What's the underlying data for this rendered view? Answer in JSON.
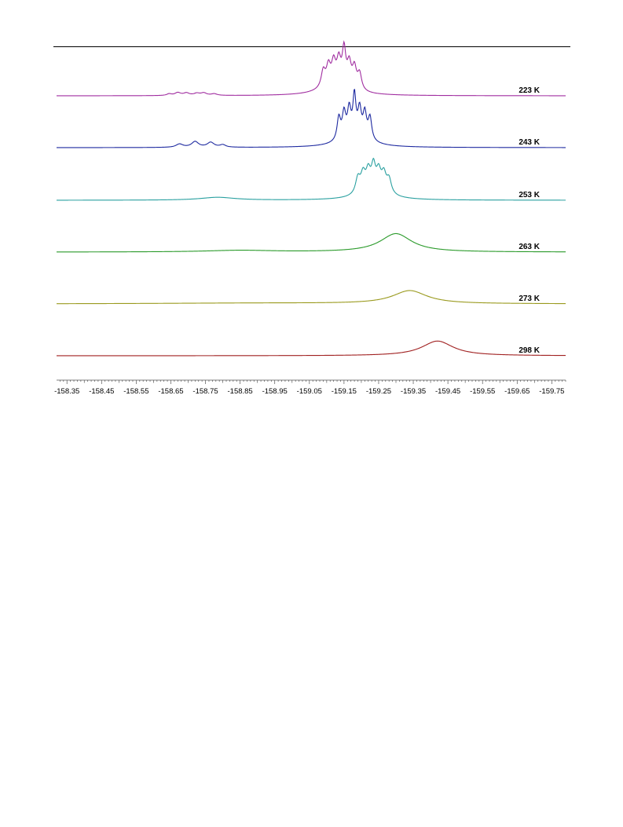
{
  "chart_data": {
    "type": "line",
    "title": "",
    "xlabel": "",
    "ylabel": "",
    "xlim": [
      -158.32,
      -159.79
    ],
    "x_axis_reversed": true,
    "x_ticks": [
      "-158.35",
      "-158.45",
      "-158.55",
      "-158.65",
      "-158.75",
      "-158.85",
      "-158.95",
      "-159.05",
      "-159.15",
      "-159.25",
      "-159.35",
      "-159.45",
      "-159.55",
      "-159.65",
      "-159.75"
    ],
    "grid": false,
    "legend": "none",
    "y_axis": "none",
    "stacked_offset": true,
    "series": [
      {
        "name": "223 K",
        "color": "#a02da0",
        "peaks": [
          {
            "x": -158.645,
            "height": 0.04,
            "width": 0.008
          },
          {
            "x": -158.67,
            "height": 0.07,
            "width": 0.01
          },
          {
            "x": -158.695,
            "height": 0.06,
            "width": 0.01
          },
          {
            "x": -158.725,
            "height": 0.05,
            "width": 0.01
          },
          {
            "x": -158.745,
            "height": 0.06,
            "width": 0.01
          },
          {
            "x": -158.775,
            "height": 0.04,
            "width": 0.01
          },
          {
            "x": -159.09,
            "height": 0.4,
            "width": 0.007
          },
          {
            "x": -159.105,
            "height": 0.45,
            "width": 0.007
          },
          {
            "x": -159.12,
            "height": 0.5,
            "width": 0.007
          },
          {
            "x": -159.135,
            "height": 0.55,
            "width": 0.007
          },
          {
            "x": -159.15,
            "height": 0.85,
            "width": 0.006
          },
          {
            "x": -159.165,
            "height": 0.55,
            "width": 0.007
          },
          {
            "x": -159.18,
            "height": 0.5,
            "width": 0.007
          },
          {
            "x": -159.195,
            "height": 0.4,
            "width": 0.007
          },
          {
            "x": -159.125,
            "height": 0.25,
            "width": 0.05
          }
        ]
      },
      {
        "name": "243 K",
        "color": "#1e2aa0",
        "peaks": [
          {
            "x": -158.675,
            "height": 0.08,
            "width": 0.012
          },
          {
            "x": -158.72,
            "height": 0.14,
            "width": 0.012
          },
          {
            "x": -158.765,
            "height": 0.12,
            "width": 0.012
          },
          {
            "x": -158.8,
            "height": 0.06,
            "width": 0.01
          },
          {
            "x": -159.135,
            "height": 0.55,
            "width": 0.006
          },
          {
            "x": -159.15,
            "height": 0.6,
            "width": 0.006
          },
          {
            "x": -159.165,
            "height": 0.65,
            "width": 0.006
          },
          {
            "x": -159.18,
            "height": 0.95,
            "width": 0.005
          },
          {
            "x": -159.195,
            "height": 0.65,
            "width": 0.006
          },
          {
            "x": -159.21,
            "height": 0.6,
            "width": 0.006
          },
          {
            "x": -159.225,
            "height": 0.55,
            "width": 0.006
          },
          {
            "x": -159.18,
            "height": 0.25,
            "width": 0.05
          }
        ]
      },
      {
        "name": "253 K",
        "color": "#2aa0a0",
        "peaks": [
          {
            "x": -158.785,
            "height": 0.07,
            "width": 0.06
          },
          {
            "x": -159.19,
            "height": 0.38,
            "width": 0.008
          },
          {
            "x": -159.205,
            "height": 0.42,
            "width": 0.008
          },
          {
            "x": -159.22,
            "height": 0.45,
            "width": 0.008
          },
          {
            "x": -159.235,
            "height": 0.55,
            "width": 0.007
          },
          {
            "x": -159.25,
            "height": 0.45,
            "width": 0.008
          },
          {
            "x": -159.265,
            "height": 0.42,
            "width": 0.008
          },
          {
            "x": -159.28,
            "height": 0.35,
            "width": 0.008
          },
          {
            "x": -159.235,
            "height": 0.2,
            "width": 0.05
          }
        ]
      },
      {
        "name": "263 K",
        "color": "#2a9a2a",
        "peaks": [
          {
            "x": -158.85,
            "height": 0.04,
            "width": 0.12
          },
          {
            "x": -159.3,
            "height": 0.45,
            "width": 0.055
          }
        ]
      },
      {
        "name": "273 K",
        "color": "#9a9a1e",
        "peaks": [
          {
            "x": -158.9,
            "height": 0.02,
            "width": 0.35
          },
          {
            "x": -159.34,
            "height": 0.32,
            "width": 0.06
          }
        ]
      },
      {
        "name": "298 K",
        "color": "#a02020",
        "peaks": [
          {
            "x": -159.42,
            "height": 0.36,
            "width": 0.055
          }
        ]
      }
    ]
  }
}
